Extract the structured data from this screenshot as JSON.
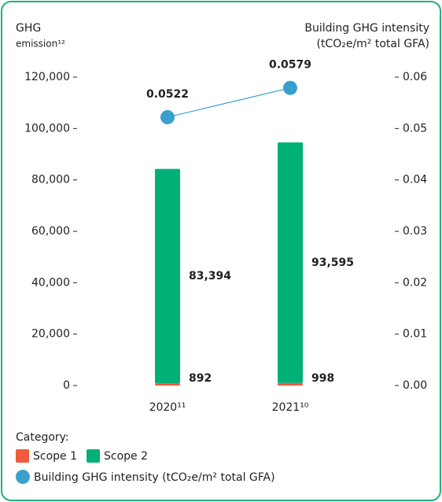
{
  "chart_data": {
    "type": "bar",
    "y_label": [
      "GHG",
      "emission¹²"
    ],
    "y2_label": [
      "Building GHG intensity",
      "(tCO₂e/m² total GFA)"
    ],
    "categories": [
      "2020¹¹",
      "2021¹⁰"
    ],
    "stacked": true,
    "series": [
      {
        "name": "Scope 1",
        "color": "#ef5b3d",
        "values": [
          892,
          998
        ],
        "value_labels": [
          "892",
          "998"
        ]
      },
      {
        "name": "Scope 2",
        "color": "#00b077",
        "values": [
          83394,
          93595
        ],
        "value_labels": [
          "83,394",
          "93,595"
        ]
      },
      {
        "name": "Building GHG intensity (tCO₂e/m² total GFA)",
        "type": "line",
        "axis": "y2",
        "color": "#3a9fcc",
        "values": [
          0.0522,
          0.0579
        ]
      }
    ],
    "ylim": [
      0,
      120000
    ],
    "yticks": [
      0,
      {
        "value": 20000,
        "label": "20,000"
      },
      {
        "value": 40000,
        "label": "40,000"
      },
      {
        "value": 60000,
        "label": "60,000"
      },
      {
        "value": 80000,
        "label": "80,000"
      },
      {
        "value": 100000,
        "label": "100,000"
      },
      {
        "value": 120000,
        "label": "120,000"
      }
    ],
    "y2lim": [
      0,
      0.06
    ],
    "y2ticks": [
      {
        "value": 0,
        "label": "0.00"
      },
      0.01,
      0.02,
      0.03,
      0.04,
      0.05,
      0.06
    ],
    "legend_title": "Category:",
    "legend": "bottom-left",
    "grid": false
  }
}
